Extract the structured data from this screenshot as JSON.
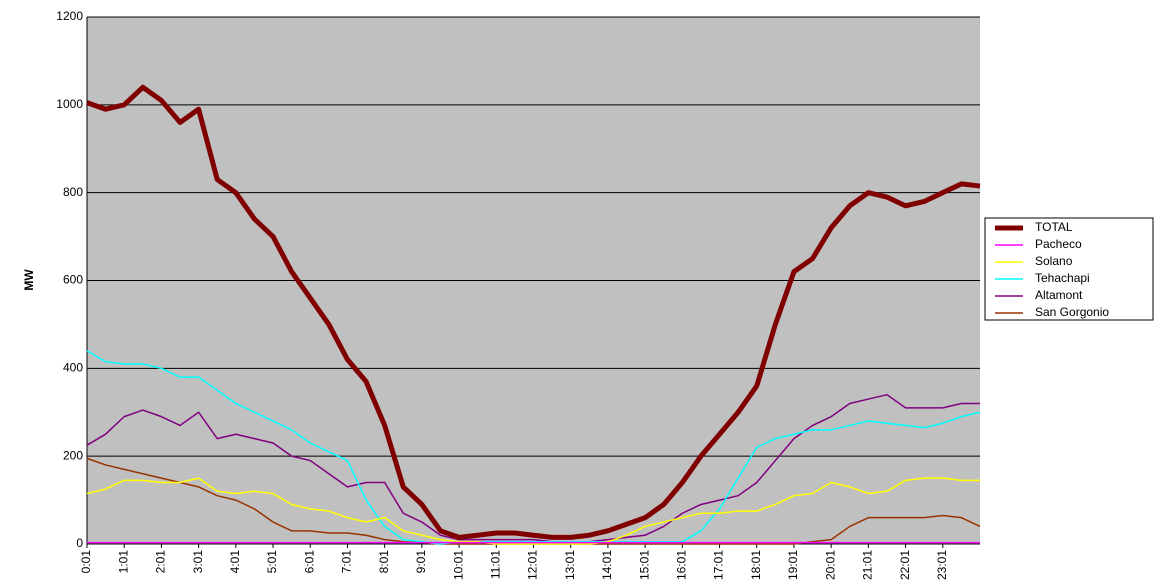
{
  "chart_data": {
    "type": "line",
    "y_label": "MW",
    "x": [
      0,
      0.5,
      1,
      1.5,
      2,
      2.5,
      3,
      3.5,
      4,
      4.5,
      5,
      5.5,
      6,
      6.5,
      7,
      7.5,
      8,
      8.5,
      9,
      9.5,
      10,
      10.5,
      11,
      11.5,
      12,
      12.5,
      13,
      13.5,
      14,
      14.5,
      15,
      15.5,
      16,
      16.5,
      17,
      17.5,
      18,
      18.5,
      19,
      19.5,
      20,
      20.5,
      21,
      21.5,
      22,
      22.5,
      23,
      23.5,
      24
    ],
    "xlim": [
      0,
      24
    ],
    "xticks": [
      {
        "value": 0,
        "label": "0:01"
      },
      {
        "value": 1,
        "label": "1:01"
      },
      {
        "value": 2,
        "label": "2:01"
      },
      {
        "value": 3,
        "label": "3:01"
      },
      {
        "value": 4,
        "label": "4:01"
      },
      {
        "value": 5,
        "label": "5:01"
      },
      {
        "value": 6,
        "label": "6:01"
      },
      {
        "value": 7,
        "label": "7:01"
      },
      {
        "value": 8,
        "label": "8:01"
      },
      {
        "value": 9,
        "label": "9:01"
      },
      {
        "value": 10,
        "label": "10:01"
      },
      {
        "value": 11,
        "label": "11:01"
      },
      {
        "value": 12,
        "label": "12:01"
      },
      {
        "value": 13,
        "label": "13:01"
      },
      {
        "value": 14,
        "label": "14:01"
      },
      {
        "value": 15,
        "label": "15:01"
      },
      {
        "value": 16,
        "label": "16:01"
      },
      {
        "value": 17,
        "label": "17:01"
      },
      {
        "value": 18,
        "label": "18:01"
      },
      {
        "value": 19,
        "label": "19:01"
      },
      {
        "value": 20,
        "label": "20:01"
      },
      {
        "value": 21,
        "label": "21:01"
      },
      {
        "value": 22,
        "label": "22:01"
      },
      {
        "value": 23,
        "label": "23:01"
      }
    ],
    "ylim": [
      0,
      1200
    ],
    "yticks": [
      0,
      200,
      400,
      600,
      800,
      1000,
      1200
    ],
    "grid": true,
    "legend": "right",
    "series": [
      {
        "name": "TOTAL",
        "color": "#800000",
        "values": [
          1005,
          990,
          1000,
          1040,
          1010,
          960,
          990,
          830,
          800,
          740,
          700,
          620,
          560,
          500,
          420,
          370,
          270,
          130,
          90,
          30,
          15,
          20,
          25,
          25,
          20,
          15,
          15,
          20,
          30,
          45,
          60,
          90,
          140,
          200,
          250,
          300,
          360,
          500,
          620,
          650,
          720,
          770,
          800,
          790,
          770,
          780,
          800,
          820,
          815
        ]
      },
      {
        "name": "Pacheco",
        "color": "#ff00ff",
        "values": [
          3,
          3,
          3,
          3,
          3,
          3,
          3,
          3,
          3,
          3,
          3,
          3,
          3,
          3,
          3,
          3,
          3,
          3,
          3,
          3,
          3,
          3,
          3,
          3,
          3,
          3,
          3,
          3,
          3,
          3,
          3,
          3,
          3,
          3,
          3,
          3,
          3,
          3,
          3,
          3,
          3,
          3,
          3,
          3,
          3,
          3,
          3,
          3,
          3
        ]
      },
      {
        "name": "Solano",
        "color": "#ffff00",
        "values": [
          115,
          125,
          145,
          145,
          140,
          140,
          150,
          120,
          115,
          120,
          115,
          90,
          80,
          75,
          60,
          50,
          60,
          30,
          20,
          10,
          5,
          5,
          0,
          0,
          0,
          0,
          0,
          0,
          5,
          20,
          40,
          50,
          60,
          70,
          70,
          75,
          75,
          90,
          110,
          115,
          140,
          130,
          115,
          120,
          145,
          150,
          150,
          145,
          145
        ]
      },
      {
        "name": "Tehachapi",
        "color": "#00ffff",
        "values": [
          440,
          415,
          410,
          410,
          400,
          380,
          380,
          350,
          320,
          300,
          280,
          260,
          230,
          210,
          190,
          100,
          40,
          10,
          5,
          0,
          5,
          5,
          5,
          5,
          5,
          5,
          5,
          5,
          5,
          5,
          5,
          5,
          5,
          30,
          80,
          150,
          220,
          240,
          250,
          260,
          260,
          270,
          280,
          275,
          270,
          265,
          275,
          290,
          300
        ]
      },
      {
        "name": "Altamont",
        "color": "#800080",
        "values": [
          225,
          250,
          290,
          305,
          290,
          270,
          300,
          240,
          250,
          240,
          230,
          200,
          190,
          160,
          130,
          140,
          140,
          70,
          50,
          20,
          10,
          10,
          10,
          10,
          10,
          5,
          5,
          5,
          10,
          15,
          20,
          40,
          70,
          90,
          100,
          110,
          140,
          190,
          240,
          270,
          290,
          320,
          330,
          340,
          310,
          310,
          310,
          320,
          320
        ]
      },
      {
        "name": "San Gorgonio",
        "color": "#993300",
        "values": [
          195,
          180,
          170,
          160,
          150,
          140,
          130,
          110,
          100,
          80,
          50,
          30,
          30,
          25,
          25,
          20,
          10,
          5,
          3,
          0,
          0,
          0,
          0,
          0,
          0,
          0,
          0,
          0,
          0,
          0,
          0,
          0,
          0,
          0,
          0,
          0,
          0,
          0,
          0,
          5,
          10,
          40,
          60,
          60,
          60,
          60,
          65,
          60,
          40
        ]
      }
    ]
  }
}
